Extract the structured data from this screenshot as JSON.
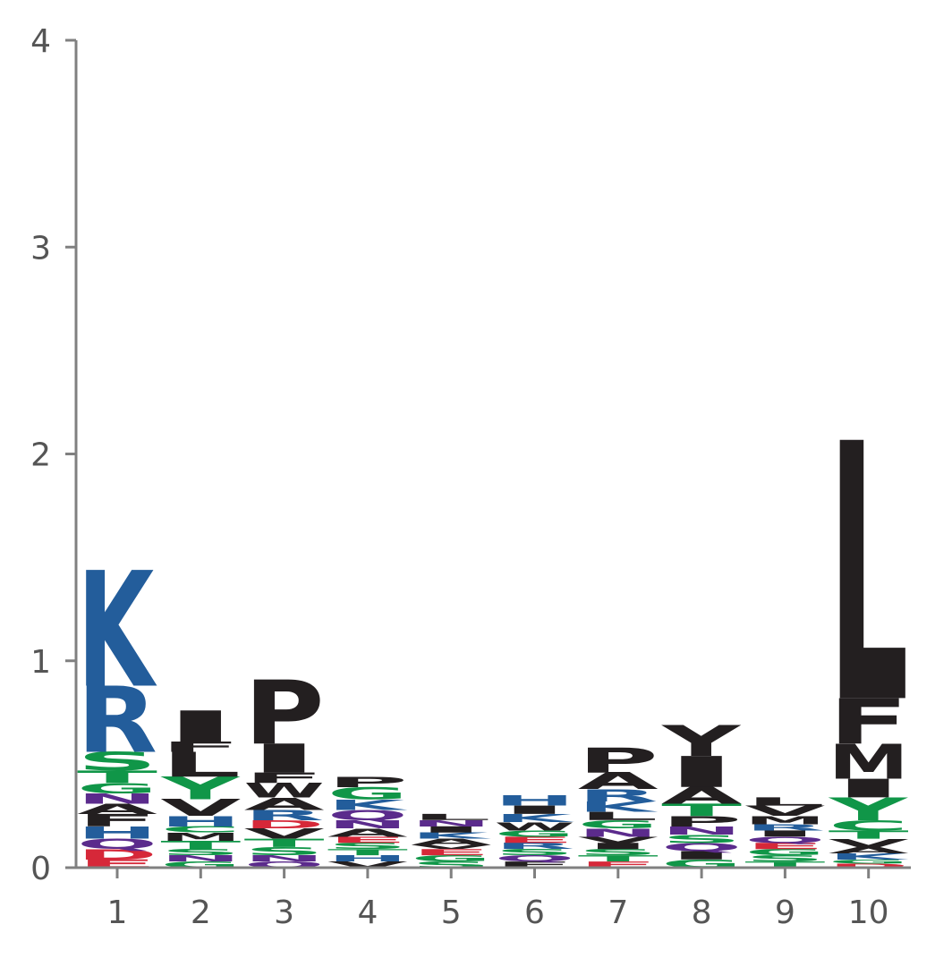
{
  "chart_data": {
    "type": "sequence-logo",
    "title": "",
    "xlabel": "",
    "ylabel": "",
    "ylim": [
      0,
      4
    ],
    "yticks": [
      "0",
      "1",
      "2",
      "3",
      "4"
    ],
    "xticks": [
      "1",
      "2",
      "3",
      "4",
      "5",
      "6",
      "7",
      "8",
      "9",
      "10"
    ],
    "colors": {
      "black": "#231f20",
      "blue": "#235d9b",
      "green": "#109648",
      "purple": "#5b2b8c",
      "red": "#d62839",
      "axis": "#808080",
      "text": "#555555"
    },
    "positions": [
      {
        "position": 1,
        "letters": [
          {
            "letter": "E",
            "height": 0.04,
            "color": "red"
          },
          {
            "letter": "D",
            "height": 0.05,
            "color": "red"
          },
          {
            "letter": "Q",
            "height": 0.05,
            "color": "purple"
          },
          {
            "letter": "H",
            "height": 0.06,
            "color": "blue"
          },
          {
            "letter": "F",
            "height": 0.06,
            "color": "black"
          },
          {
            "letter": "A",
            "height": 0.05,
            "color": "black"
          },
          {
            "letter": "N",
            "height": 0.05,
            "color": "purple"
          },
          {
            "letter": "G",
            "height": 0.05,
            "color": "green"
          },
          {
            "letter": "T",
            "height": 0.06,
            "color": "green"
          },
          {
            "letter": "S",
            "height": 0.09,
            "color": "green"
          },
          {
            "letter": "R",
            "height": 0.32,
            "color": "blue"
          },
          {
            "letter": "K",
            "height": 0.56,
            "color": "blue"
          }
        ]
      },
      {
        "position": 2,
        "letters": [
          {
            "letter": "G",
            "height": 0.03,
            "color": "green"
          },
          {
            "letter": "N",
            "height": 0.03,
            "color": "purple"
          },
          {
            "letter": "S",
            "height": 0.03,
            "color": "green"
          },
          {
            "letter": "T",
            "height": 0.04,
            "color": "green"
          },
          {
            "letter": "M",
            "height": 0.04,
            "color": "black"
          },
          {
            "letter": "C",
            "height": 0.03,
            "color": "green"
          },
          {
            "letter": "H",
            "height": 0.05,
            "color": "blue"
          },
          {
            "letter": "V",
            "height": 0.08,
            "color": "black"
          },
          {
            "letter": "Y",
            "height": 0.11,
            "color": "green"
          },
          {
            "letter": "L",
            "height": 0.12,
            "color": "black"
          },
          {
            "letter": "F",
            "height": 0.05,
            "color": "black"
          },
          {
            "letter": "I",
            "height": 0.15,
            "color": "black"
          }
        ]
      },
      {
        "position": 3,
        "letters": [
          {
            "letter": "Q",
            "height": 0.03,
            "color": "purple"
          },
          {
            "letter": "N",
            "height": 0.03,
            "color": "purple"
          },
          {
            "letter": "S",
            "height": 0.04,
            "color": "green"
          },
          {
            "letter": "T",
            "height": 0.04,
            "color": "green"
          },
          {
            "letter": "V",
            "height": 0.05,
            "color": "black"
          },
          {
            "letter": "D",
            "height": 0.04,
            "color": "red"
          },
          {
            "letter": "R",
            "height": 0.05,
            "color": "blue"
          },
          {
            "letter": "A",
            "height": 0.06,
            "color": "black"
          },
          {
            "letter": "W",
            "height": 0.07,
            "color": "black"
          },
          {
            "letter": "F",
            "height": 0.05,
            "color": "black"
          },
          {
            "letter": "I",
            "height": 0.14,
            "color": "black"
          },
          {
            "letter": "P",
            "height": 0.31,
            "color": "black"
          }
        ]
      },
      {
        "position": 4,
        "letters": [
          {
            "letter": "V",
            "height": 0.03,
            "color": "black"
          },
          {
            "letter": "H",
            "height": 0.03,
            "color": "blue"
          },
          {
            "letter": "T",
            "height": 0.03,
            "color": "green"
          },
          {
            "letter": "S",
            "height": 0.03,
            "color": "green"
          },
          {
            "letter": "E",
            "height": 0.03,
            "color": "red"
          },
          {
            "letter": "A",
            "height": 0.04,
            "color": "black"
          },
          {
            "letter": "N",
            "height": 0.04,
            "color": "purple"
          },
          {
            "letter": "Q",
            "height": 0.05,
            "color": "purple"
          },
          {
            "letter": "K",
            "height": 0.05,
            "color": "blue"
          },
          {
            "letter": "G",
            "height": 0.06,
            "color": "green"
          },
          {
            "letter": "P",
            "height": 0.05,
            "color": "black"
          }
        ]
      },
      {
        "position": 5,
        "letters": [
          {
            "letter": "S",
            "height": 0.03,
            "color": "green"
          },
          {
            "letter": "G",
            "height": 0.03,
            "color": "green"
          },
          {
            "letter": "E",
            "height": 0.03,
            "color": "red"
          },
          {
            "letter": "V",
            "height": 0.02,
            "color": "black"
          },
          {
            "letter": "A",
            "height": 0.03,
            "color": "black"
          },
          {
            "letter": "K",
            "height": 0.03,
            "color": "blue"
          },
          {
            "letter": "I",
            "height": 0.03,
            "color": "black"
          },
          {
            "letter": "N",
            "height": 0.03,
            "color": "purple"
          },
          {
            "letter": "L",
            "height": 0.03,
            "color": "black"
          }
        ]
      },
      {
        "position": 6,
        "letters": [
          {
            "letter": "F",
            "height": 0.03,
            "color": "black"
          },
          {
            "letter": "Q",
            "height": 0.03,
            "color": "purple"
          },
          {
            "letter": "S",
            "height": 0.03,
            "color": "green"
          },
          {
            "letter": "R",
            "height": 0.03,
            "color": "blue"
          },
          {
            "letter": "E",
            "height": 0.03,
            "color": "red"
          },
          {
            "letter": "G",
            "height": 0.03,
            "color": "green"
          },
          {
            "letter": "W",
            "height": 0.04,
            "color": "black"
          },
          {
            "letter": "K",
            "height": 0.04,
            "color": "blue"
          },
          {
            "letter": "I",
            "height": 0.04,
            "color": "black"
          },
          {
            "letter": "H",
            "height": 0.05,
            "color": "blue"
          }
        ]
      },
      {
        "position": 7,
        "letters": [
          {
            "letter": "E",
            "height": 0.03,
            "color": "red"
          },
          {
            "letter": "T",
            "height": 0.03,
            "color": "green"
          },
          {
            "letter": "S",
            "height": 0.03,
            "color": "green"
          },
          {
            "letter": "I",
            "height": 0.03,
            "color": "black"
          },
          {
            "letter": "V",
            "height": 0.03,
            "color": "black"
          },
          {
            "letter": "N",
            "height": 0.04,
            "color": "purple"
          },
          {
            "letter": "G",
            "height": 0.04,
            "color": "green"
          },
          {
            "letter": "L",
            "height": 0.04,
            "color": "black"
          },
          {
            "letter": "K",
            "height": 0.05,
            "color": "blue"
          },
          {
            "letter": "R",
            "height": 0.06,
            "color": "blue"
          },
          {
            "letter": "A",
            "height": 0.08,
            "color": "black"
          },
          {
            "letter": "P",
            "height": 0.12,
            "color": "black"
          }
        ]
      },
      {
        "position": 8,
        "letters": [
          {
            "letter": "G",
            "height": 0.04,
            "color": "green"
          },
          {
            "letter": "I",
            "height": 0.04,
            "color": "black"
          },
          {
            "letter": "Q",
            "height": 0.04,
            "color": "purple"
          },
          {
            "letter": "S",
            "height": 0.04,
            "color": "green"
          },
          {
            "letter": "N",
            "height": 0.04,
            "color": "purple"
          },
          {
            "letter": "P",
            "height": 0.05,
            "color": "black"
          },
          {
            "letter": "T",
            "height": 0.06,
            "color": "green"
          },
          {
            "letter": "A",
            "height": 0.08,
            "color": "black"
          },
          {
            "letter": "I",
            "height": 0.15,
            "color": "black"
          },
          {
            "letter": "Y",
            "height": 0.15,
            "color": "black"
          }
        ]
      },
      {
        "position": 9,
        "letters": [
          {
            "letter": "T",
            "height": 0.03,
            "color": "green"
          },
          {
            "letter": "S",
            "height": 0.03,
            "color": "green"
          },
          {
            "letter": "G",
            "height": 0.03,
            "color": "green"
          },
          {
            "letter": "E",
            "height": 0.03,
            "color": "red"
          },
          {
            "letter": "Q",
            "height": 0.03,
            "color": "purple"
          },
          {
            "letter": "I",
            "height": 0.03,
            "color": "black"
          },
          {
            "letter": "R",
            "height": 0.03,
            "color": "blue"
          },
          {
            "letter": "M",
            "height": 0.04,
            "color": "black"
          },
          {
            "letter": "V",
            "height": 0.05,
            "color": "black"
          },
          {
            "letter": "L",
            "height": 0.04,
            "color": "black"
          }
        ]
      },
      {
        "position": 10,
        "letters": [
          {
            "letter": "D",
            "height": 0.02,
            "color": "red"
          },
          {
            "letter": "G",
            "height": 0.02,
            "color": "green"
          },
          {
            "letter": "K",
            "height": 0.03,
            "color": "blue"
          },
          {
            "letter": "A",
            "height": 0.03,
            "color": "black"
          },
          {
            "letter": "V",
            "height": 0.04,
            "color": "black"
          },
          {
            "letter": "T",
            "height": 0.04,
            "color": "green"
          },
          {
            "letter": "C",
            "height": 0.05,
            "color": "green"
          },
          {
            "letter": "Y",
            "height": 0.11,
            "color": "green"
          },
          {
            "letter": "I",
            "height": 0.09,
            "color": "black"
          },
          {
            "letter": "M",
            "height": 0.17,
            "color": "black"
          },
          {
            "letter": "F",
            "height": 0.22,
            "color": "black"
          },
          {
            "letter": "L",
            "height": 1.25,
            "color": "black"
          }
        ]
      }
    ]
  }
}
